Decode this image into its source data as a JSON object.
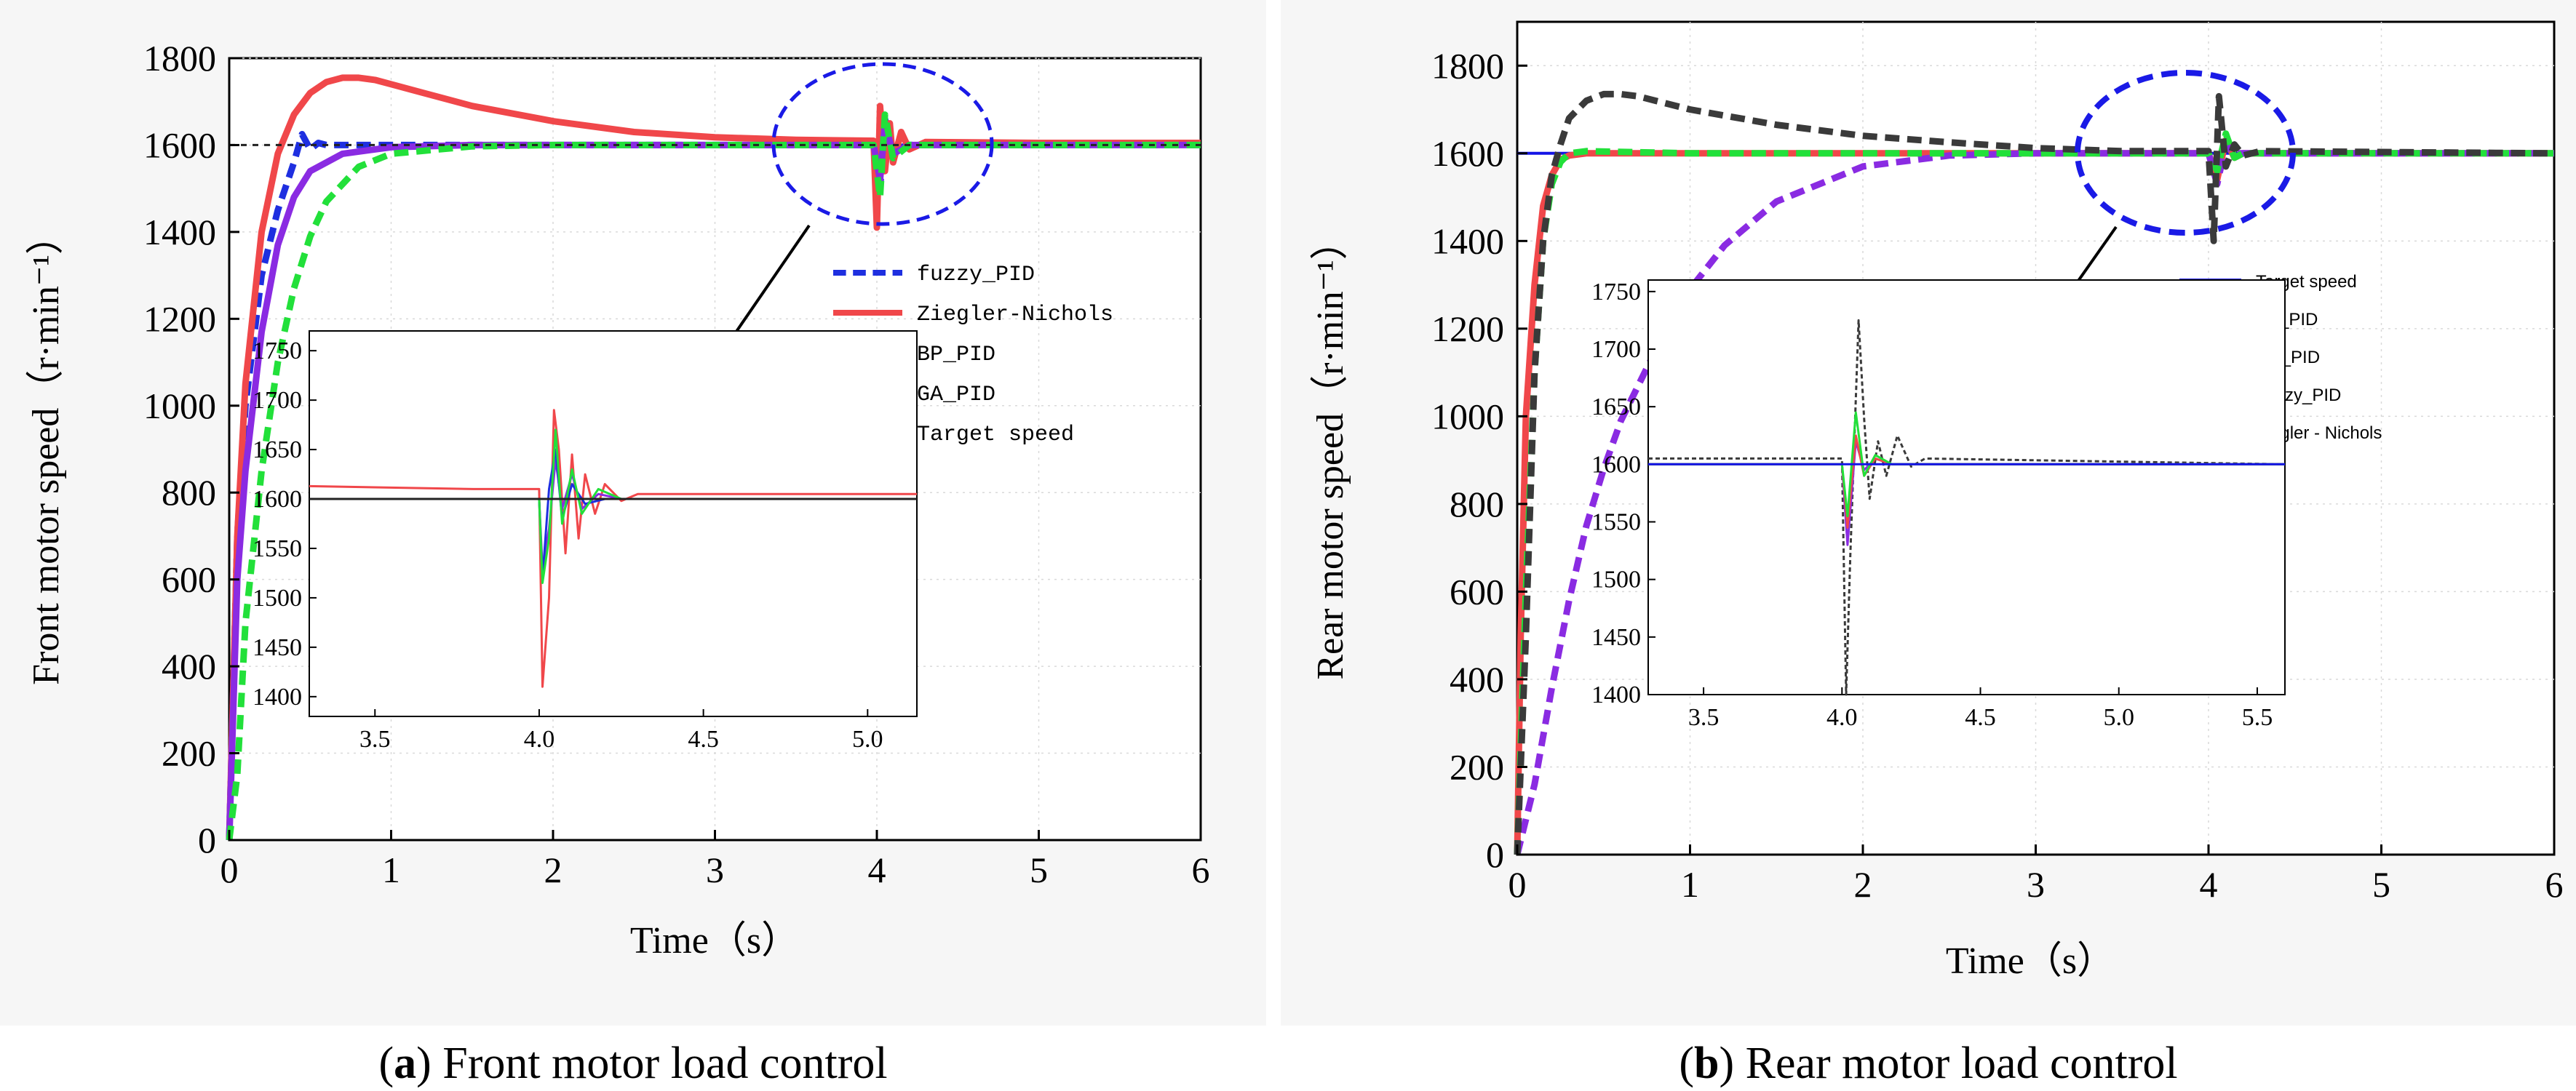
{
  "figure": {
    "caption_a_letter": "a",
    "caption_a_text": " Front motor load control",
    "caption_b_letter": "b",
    "caption_b_text": " Rear motor load control"
  },
  "colors": {
    "fuzzy_front": "#1e2fe0",
    "zn_front": "#f0474a",
    "bp_front": "#8a2be2",
    "ga": "#22e03a",
    "target": "#222222",
    "target_rear": "#1414e6",
    "bp_rear": "#f0474a",
    "ga_rear": "#8a2be2",
    "zn_rear": "#3a3a3a",
    "highlight": "#1a1ae6"
  },
  "chart_data": [
    {
      "id": "front",
      "type": "line",
      "title": "",
      "xlabel": "Time（s）",
      "ylabel": "Front motor speed（r·min⁻¹）",
      "xlim": [
        0,
        6
      ],
      "ylim": [
        0,
        1800
      ],
      "xticks": [
        "0",
        "1",
        "2",
        "3",
        "4",
        "5",
        "6"
      ],
      "yticks": [
        "0",
        "200",
        "400",
        "600",
        "800",
        "1000",
        "1200",
        "1400",
        "1600",
        "1800"
      ],
      "legend": [
        "fuzzy_PID",
        "Ziegler-Nichols",
        "BP_PID",
        "GA_PID",
        "Target speed"
      ],
      "series": [
        {
          "name": "fuzzy_PID",
          "color_key": "fuzzy_front",
          "dash": "dash",
          "x": [
            0,
            0.05,
            0.1,
            0.2,
            0.3,
            0.4,
            0.45,
            0.5,
            0.55,
            0.6,
            0.7,
            1,
            2,
            3,
            3.98,
            4.02,
            4.05,
            4.1,
            4.2,
            5,
            6
          ],
          "y": [
            0,
            700,
            1000,
            1300,
            1450,
            1560,
            1625,
            1590,
            1605,
            1600,
            1600,
            1600,
            1600,
            1600,
            1600,
            1500,
            1660,
            1590,
            1600,
            1600,
            1600
          ]
        },
        {
          "name": "Ziegler-Nichols",
          "color_key": "zn_front",
          "dash": "solid",
          "x": [
            0,
            0.05,
            0.1,
            0.2,
            0.3,
            0.4,
            0.5,
            0.6,
            0.7,
            0.8,
            0.9,
            1.0,
            1.2,
            1.5,
            2,
            2.5,
            3,
            3.5,
            3.98,
            4.0,
            4.02,
            4.05,
            4.08,
            4.1,
            4.15,
            4.2,
            4.3,
            5,
            6
          ],
          "y": [
            0,
            700,
            1050,
            1400,
            1580,
            1670,
            1720,
            1745,
            1755,
            1755,
            1750,
            1740,
            1720,
            1690,
            1655,
            1630,
            1618,
            1612,
            1610,
            1410,
            1690,
            1540,
            1650,
            1560,
            1630,
            1590,
            1607,
            1605,
            1605
          ]
        },
        {
          "name": "BP_PID",
          "color_key": "bp_front",
          "dash": "solid",
          "x": [
            0,
            0.05,
            0.1,
            0.2,
            0.3,
            0.4,
            0.5,
            0.7,
            1.0,
            1.5,
            2,
            3,
            3.98,
            4.02,
            4.05,
            4.1,
            4.2,
            5,
            6
          ],
          "y": [
            0,
            600,
            850,
            1170,
            1370,
            1480,
            1540,
            1580,
            1595,
            1600,
            1600,
            1600,
            1600,
            1520,
            1650,
            1580,
            1600,
            1600,
            1600
          ]
        },
        {
          "name": "GA_PID",
          "color_key": "ga",
          "dash": "dash",
          "x": [
            0,
            0.05,
            0.1,
            0.2,
            0.3,
            0.4,
            0.5,
            0.6,
            0.8,
            1.0,
            1.5,
            2,
            3,
            3.98,
            4.02,
            4.05,
            4.1,
            4.2,
            5,
            6
          ],
          "y": [
            0,
            150,
            500,
            850,
            1100,
            1270,
            1390,
            1470,
            1550,
            1580,
            1597,
            1600,
            1600,
            1600,
            1480,
            1670,
            1570,
            1600,
            1600,
            1600
          ]
        },
        {
          "name": "Target speed",
          "color_key": "target",
          "dash": "dot",
          "x": [
            0,
            6
          ],
          "y": [
            1600,
            1600
          ]
        }
      ],
      "inset": {
        "xlim": [
          3.3,
          5.15
        ],
        "ylim": [
          1380,
          1770
        ],
        "xticks": [
          "3.5",
          "4.0",
          "4.5",
          "5.0"
        ],
        "yticks": [
          "1400",
          "1450",
          "1500",
          "1550",
          "1600",
          "1650",
          "1700",
          "1750"
        ],
        "series": [
          {
            "name": "Ziegler-Nichols",
            "color_key": "zn_front",
            "x": [
              3.3,
              3.8,
              4.0,
              4.01,
              4.03,
              4.045,
              4.06,
              4.08,
              4.1,
              4.12,
              4.14,
              4.17,
              4.2,
              4.25,
              4.3,
              5.15
            ],
            "y": [
              1613,
              1610,
              1610,
              1410,
              1500,
              1690,
              1650,
              1545,
              1645,
              1560,
              1625,
              1585,
              1615,
              1598,
              1605,
              1605
            ]
          },
          {
            "name": "BP_PID",
            "color_key": "bp_front",
            "x": [
              3.3,
              4.0,
              4.01,
              4.03,
              4.05,
              4.07,
              4.1,
              4.13,
              4.18,
              4.25,
              5.15
            ],
            "y": [
              1600,
              1600,
              1530,
              1570,
              1640,
              1590,
              1625,
              1590,
              1605,
              1600,
              1600
            ]
          },
          {
            "name": "fuzzy_PID",
            "color_key": "fuzzy_front",
            "x": [
              3.3,
              4.0,
              4.01,
              4.03,
              4.05,
              4.07,
              4.1,
              4.14,
              4.2,
              5.15
            ],
            "y": [
              1600,
              1600,
              1520,
              1610,
              1650,
              1580,
              1615,
              1595,
              1600,
              1600
            ]
          },
          {
            "name": "GA_PID",
            "color_key": "ga",
            "x": [
              3.3,
              4.0,
              4.01,
              4.03,
              4.05,
              4.07,
              4.1,
              4.13,
              4.18,
              4.25,
              5.15
            ],
            "y": [
              1600,
              1600,
              1515,
              1560,
              1670,
              1575,
              1630,
              1585,
              1610,
              1600,
              1600
            ]
          },
          {
            "name": "Target speed",
            "color_key": "target",
            "x": [
              3.3,
              5.15
            ],
            "y": [
              1600,
              1600
            ]
          }
        ]
      }
    },
    {
      "id": "rear",
      "type": "line",
      "title": "",
      "xlabel": "Time（s）",
      "ylabel": "Rear motor speed（r·min⁻¹）",
      "xlim": [
        0,
        6
      ],
      "ylim": [
        0,
        1900
      ],
      "xticks": [
        "0",
        "1",
        "2",
        "3",
        "4",
        "5",
        "6"
      ],
      "yticks": [
        "0",
        "200",
        "400",
        "600",
        "800",
        "1000",
        "1200",
        "1400",
        "1600",
        "1800"
      ],
      "legend": [
        "Target speed",
        "BP_PID",
        "GA_PID",
        "Fuzzy_PID",
        "Ziegler - Nichols"
      ],
      "series": [
        {
          "name": "Target speed",
          "color_key": "target_rear",
          "dash": "solid",
          "x": [
            0,
            6
          ],
          "y": [
            1600,
            1600
          ]
        },
        {
          "name": "BP_PID",
          "color_key": "bp_rear",
          "dash": "solid",
          "x": [
            0,
            0.02,
            0.05,
            0.1,
            0.15,
            0.2,
            0.25,
            0.3,
            0.4,
            0.5,
            1,
            3,
            4,
            4.05,
            4.1,
            4.15,
            4.2,
            6
          ],
          "y": [
            0,
            500,
            1000,
            1300,
            1480,
            1550,
            1585,
            1595,
            1600,
            1600,
            1600,
            1600,
            1600,
            1540,
            1630,
            1590,
            1600,
            1600
          ]
        },
        {
          "name": "GA_PID",
          "color_key": "ga_rear",
          "dash": "dash",
          "x": [
            0,
            0.1,
            0.2,
            0.3,
            0.4,
            0.5,
            0.6,
            0.8,
            1.0,
            1.2,
            1.5,
            2.0,
            2.5,
            3,
            4,
            4.05,
            4.1,
            4.15,
            6
          ],
          "y": [
            0,
            160,
            380,
            580,
            750,
            880,
            990,
            1150,
            1290,
            1390,
            1490,
            1570,
            1595,
            1600,
            1600,
            1530,
            1620,
            1600,
            1600
          ]
        },
        {
          "name": "Fuzzy_PID",
          "color_key": "ga",
          "dash": "dash",
          "x": [
            0,
            0.05,
            0.1,
            0.15,
            0.2,
            0.25,
            0.3,
            0.4,
            1,
            3,
            4,
            4.05,
            4.1,
            4.15,
            4.2,
            6
          ],
          "y": [
            0,
            600,
            1100,
            1400,
            1530,
            1580,
            1600,
            1605,
            1600,
            1600,
            1600,
            1560,
            1645,
            1590,
            1600,
            1600
          ]
        },
        {
          "name": "Ziegler - Nichols",
          "color_key": "zn_rear",
          "dash": "dash",
          "x": [
            0,
            0.05,
            0.1,
            0.15,
            0.2,
            0.25,
            0.3,
            0.4,
            0.5,
            0.6,
            0.7,
            0.8,
            1.0,
            1.5,
            2,
            2.5,
            3,
            3.5,
            4,
            4.03,
            4.06,
            4.1,
            4.15,
            4.2,
            4.3,
            6
          ],
          "y": [
            0,
            500,
            1100,
            1400,
            1550,
            1620,
            1680,
            1720,
            1735,
            1735,
            1730,
            1720,
            1700,
            1665,
            1640,
            1625,
            1612,
            1605,
            1605,
            1400,
            1730,
            1570,
            1620,
            1595,
            1605,
            1600
          ]
        }
      ],
      "inset": {
        "xlim": [
          3.3,
          5.6
        ],
        "ylim": [
          1400,
          1760
        ],
        "xticks": [
          "3.5",
          "4.0",
          "4.5",
          "5.0",
          "5.5"
        ],
        "yticks": [
          "1400",
          "1450",
          "1500",
          "1550",
          "1600",
          "1650",
          "1700",
          "1750"
        ],
        "series": [
          {
            "name": "Ziegler - Nichols",
            "color_key": "zn_rear",
            "x": [
              3.3,
              4.0,
              4.015,
              4.03,
              4.06,
              4.08,
              4.1,
              4.13,
              4.16,
              4.2,
              4.25,
              4.3,
              5.6
            ],
            "y": [
              1605,
              1605,
              1400,
              1520,
              1725,
              1640,
              1570,
              1620,
              1590,
              1625,
              1598,
              1605,
              1600
            ]
          },
          {
            "name": "GA_PID",
            "color_key": "ga_rear",
            "x": [
              3.3,
              4.0,
              4.02,
              4.05,
              4.08,
              4.12,
              4.18,
              5.6
            ],
            "y": [
              1600,
              1600,
              1530,
              1620,
              1595,
              1605,
              1600,
              1600
            ]
          },
          {
            "name": "BP_PID",
            "color_key": "bp_rear",
            "x": [
              3.3,
              4.0,
              4.02,
              4.05,
              4.08,
              4.12,
              4.18,
              5.6
            ],
            "y": [
              1600,
              1600,
              1545,
              1625,
              1590,
              1605,
              1600,
              1600
            ]
          },
          {
            "name": "Fuzzy_PID",
            "color_key": "ga",
            "x": [
              3.3,
              4.0,
              4.02,
              4.05,
              4.08,
              4.12,
              4.18,
              5.6
            ],
            "y": [
              1600,
              1600,
              1555,
              1645,
              1590,
              1608,
              1600,
              1600
            ]
          },
          {
            "name": "Target speed",
            "color_key": "target_rear",
            "x": [
              3.3,
              5.6
            ],
            "y": [
              1600,
              1600
            ]
          }
        ]
      }
    }
  ]
}
